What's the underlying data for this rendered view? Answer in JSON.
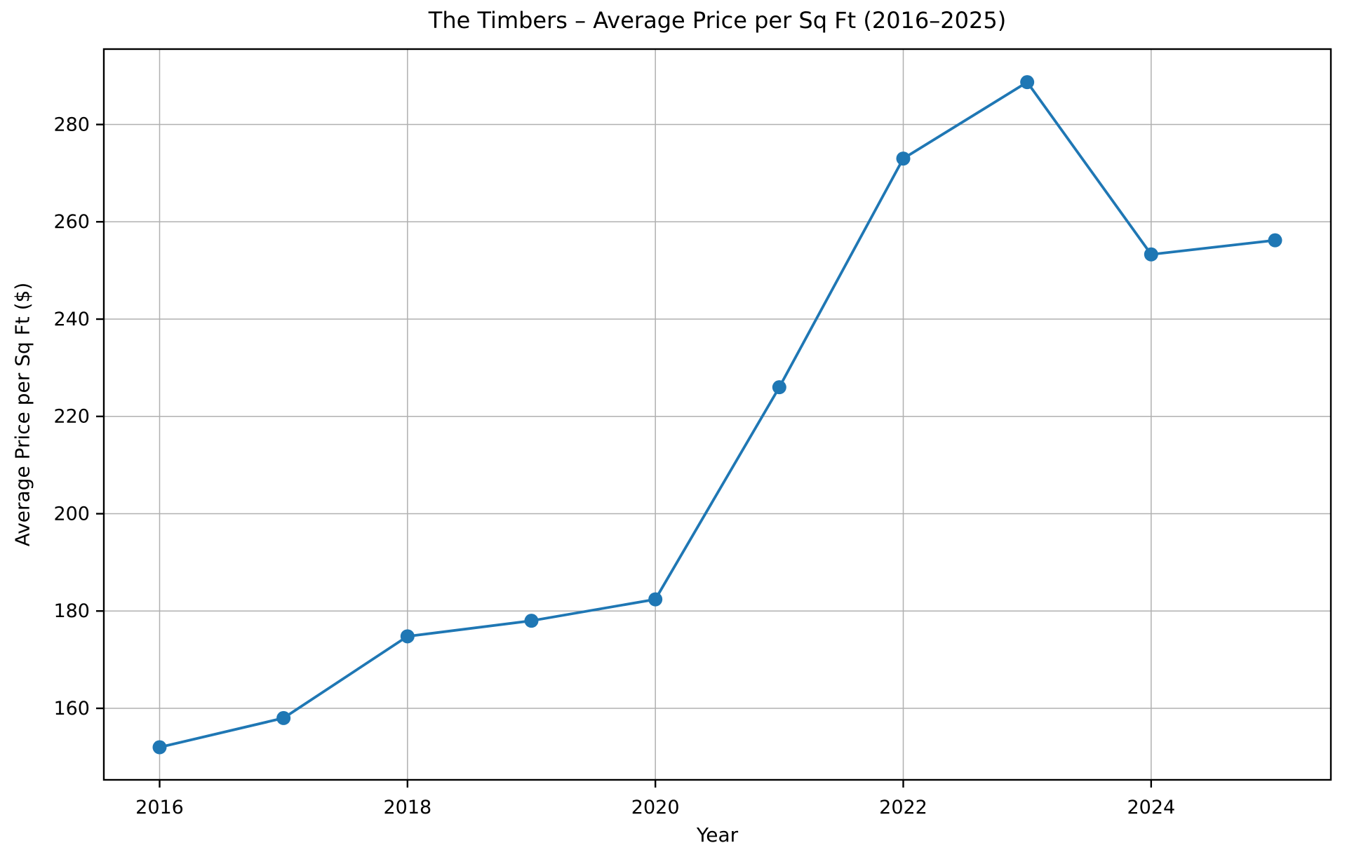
{
  "chart_data": {
    "type": "line",
    "title": "The Timbers – Average Price per Sq Ft (2016–2025)",
    "xlabel": "Year",
    "ylabel": "Average Price per Sq Ft ($)",
    "x": [
      2016,
      2017,
      2018,
      2019,
      2020,
      2021,
      2022,
      2023,
      2024,
      2025
    ],
    "series": [
      {
        "name": "Average Price per Sq Ft",
        "values": [
          152,
          158,
          174.8,
          178,
          182.4,
          226,
          273,
          288.7,
          253.3,
          256.2
        ]
      }
    ],
    "xticks": [
      2016,
      2018,
      2020,
      2022,
      2024
    ],
    "yticks": [
      160,
      180,
      200,
      220,
      240,
      260,
      280
    ],
    "xlim": [
      2015.55,
      2025.45
    ],
    "ylim": [
      145.3,
      295.5
    ],
    "grid": true,
    "legend": false,
    "line_color": "#1f77b4",
    "marker": "circle",
    "grid_color": "#b0b0b0",
    "spine_color": "#000000",
    "text_color": "#000000",
    "background_color": "#ffffff"
  }
}
